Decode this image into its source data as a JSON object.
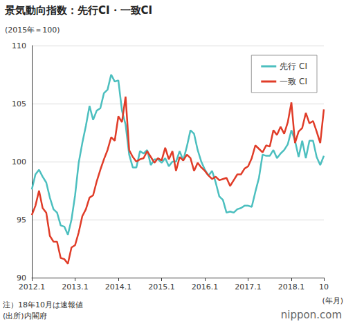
{
  "chart_data": {
    "type": "line",
    "title": "景気動向指数：先行CI・一致CI",
    "subtitle": "(2015年＝100)",
    "x_label": "(年月)",
    "annotations": [
      "注）18年10月は速報値",
      "(出所)内閣府",
      "nippon.com"
    ],
    "categories": [
      "2012.1",
      null,
      null,
      null,
      null,
      null,
      null,
      null,
      null,
      null,
      null,
      null,
      "2013.1",
      null,
      null,
      null,
      null,
      null,
      null,
      null,
      null,
      null,
      null,
      null,
      "2014.1",
      null,
      null,
      null,
      null,
      null,
      null,
      null,
      null,
      null,
      null,
      null,
      "2015.1",
      null,
      null,
      null,
      null,
      null,
      null,
      null,
      null,
      null,
      null,
      null,
      "2016.1",
      null,
      null,
      null,
      null,
      null,
      null,
      null,
      null,
      null,
      null,
      null,
      "2017.1",
      null,
      null,
      null,
      null,
      null,
      null,
      null,
      null,
      null,
      null,
      null,
      "2018.1",
      null,
      null,
      null,
      null,
      null,
      null,
      null,
      null,
      "10"
    ],
    "series": [
      {
        "name": "先行 CI",
        "color": "#4cbfbf",
        "values": [
          97.6,
          98.9,
          99.3,
          98.7,
          98.2,
          96.9,
          95.9,
          95.6,
          94.5,
          94.4,
          93.7,
          95.0,
          97.1,
          99.9,
          101.6,
          103.1,
          104.8,
          103.6,
          104.4,
          104.6,
          105.9,
          106.2,
          107.5,
          106.9,
          107.0,
          104.4,
          103.2,
          100.6,
          99.5,
          99.5,
          100.9,
          100.7,
          101.0,
          99.7,
          100.2,
          100.2,
          99.9,
          100.3,
          99.6,
          100.0,
          100.0,
          100.9,
          100.1,
          101.3,
          102.7,
          102.4,
          101.0,
          100.0,
          99.3,
          98.8,
          99.2,
          98.2,
          97.0,
          96.7,
          95.6,
          95.7,
          95.6,
          95.9,
          96.0,
          96.2,
          96.2,
          96.1,
          97.4,
          98.6,
          100.6,
          100.5,
          100.5,
          101.0,
          100.3,
          100.7,
          101.0,
          101.5,
          102.7,
          101.8,
          100.4,
          101.8,
          100.3,
          101.8,
          101.8,
          100.4,
          99.7,
          100.5
        ]
      },
      {
        "name": "一致 CI",
        "color": "#e03c28",
        "values": [
          95.4,
          96.2,
          97.5,
          96.0,
          95.6,
          93.6,
          93.1,
          93.1,
          91.7,
          91.6,
          91.2,
          92.6,
          92.8,
          93.9,
          95.3,
          95.9,
          96.9,
          97.1,
          98.3,
          99.3,
          100.2,
          101.0,
          102.1,
          101.8,
          103.9,
          103.4,
          105.6,
          101.0,
          100.4,
          100.0,
          100.2,
          100.3,
          100.9,
          100.4,
          99.9,
          100.3,
          100.1,
          101.2,
          100.2,
          100.9,
          99.2,
          100.4,
          100.1,
          100.6,
          100.3,
          99.2,
          99.9,
          99.5,
          99.2,
          98.8,
          98.5,
          98.7,
          98.4,
          98.5,
          98.6,
          97.9,
          98.4,
          98.9,
          98.9,
          99.4,
          99.6,
          100.3,
          101.4,
          101.1,
          100.8,
          101.4,
          101.3,
          102.7,
          102.3,
          103.0,
          102.4,
          103.4,
          105.1,
          101.6,
          102.6,
          102.9,
          104.2,
          103.3,
          103.5,
          102.6,
          101.6,
          104.5
        ]
      }
    ],
    "ylim": [
      90,
      110
    ],
    "yticks": [
      90,
      95,
      100,
      105,
      110
    ],
    "grid": true,
    "legend": "top-right"
  }
}
